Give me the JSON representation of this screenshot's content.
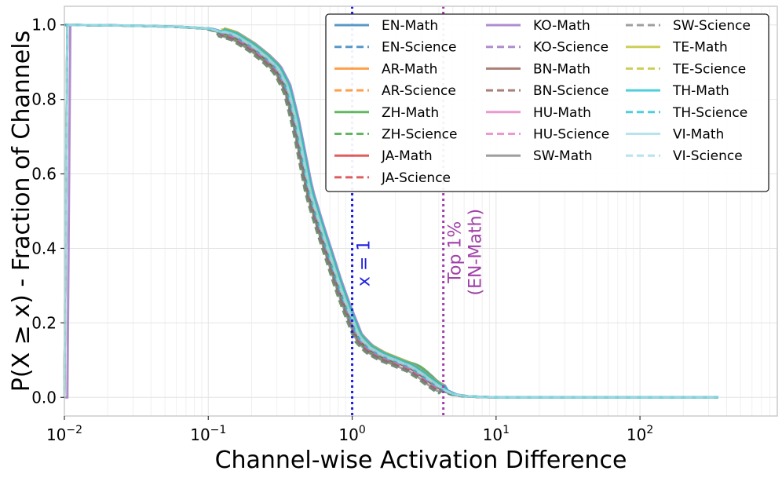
{
  "chart_data": {
    "type": "line",
    "xscale": "log",
    "xlim": [
      0.01,
      900
    ],
    "ylim": [
      -0.05,
      1.05
    ],
    "xlabel": "Channel-wise Activation Difference",
    "ylabel": "P(X ≥ x) - Fraction of Channels",
    "grid": true,
    "legend_position": "top-right",
    "x_ticks": [
      {
        "value": 0.01,
        "base": "10",
        "exp": "−2"
      },
      {
        "value": 0.1,
        "base": "10",
        "exp": "−1"
      },
      {
        "value": 1,
        "base": "10",
        "exp": "0"
      },
      {
        "value": 10,
        "base": "10",
        "exp": "1"
      },
      {
        "value": 100,
        "base": "10",
        "exp": "2"
      }
    ],
    "y_ticks": [
      {
        "value": 0.0,
        "label": "0.0"
      },
      {
        "value": 0.2,
        "label": "0.2"
      },
      {
        "value": 0.4,
        "label": "0.4"
      },
      {
        "value": 0.6,
        "label": "0.6"
      },
      {
        "value": 0.8,
        "label": "0.8"
      },
      {
        "value": 1.0,
        "label": "1.0"
      }
    ],
    "vlines": [
      {
        "x": 1.0,
        "label": "x = 1",
        "color": "#1f1fe0",
        "label_y": 0.36
      },
      {
        "x": 4.3,
        "label_lines": [
          "Top 1%",
          "(EN-Math)"
        ],
        "color": "#a040a8",
        "label_y": 0.39
      }
    ],
    "base_curve": {
      "x": [
        0.01,
        0.03,
        0.06,
        0.1,
        0.15,
        0.2,
        0.25,
        0.3,
        0.35,
        0.4,
        0.45,
        0.5,
        0.6,
        0.7,
        0.8,
        0.9,
        1.0,
        1.1,
        1.3,
        1.6,
        2.0,
        2.5,
        3.0,
        3.5,
        4.0,
        5.0,
        6.0,
        8.0,
        10,
        30,
        100,
        350
      ],
      "y": [
        1.0,
        0.998,
        0.995,
        0.99,
        0.97,
        0.94,
        0.91,
        0.88,
        0.83,
        0.74,
        0.64,
        0.55,
        0.45,
        0.37,
        0.3,
        0.245,
        0.2,
        0.16,
        0.13,
        0.11,
        0.095,
        0.08,
        0.06,
        0.04,
        0.025,
        0.008,
        0.003,
        0.001,
        0.0,
        0.0,
        0.0,
        0.0
      ]
    },
    "series": [
      {
        "name": "EN-Math",
        "color": "#1f77b4",
        "dash": false,
        "dx": 0.0,
        "dy": 0.0
      },
      {
        "name": "EN-Science",
        "color": "#1f77b4",
        "dash": true,
        "dx": -0.01,
        "dy": -0.005
      },
      {
        "name": "AR-Math",
        "color": "#ff7f0e",
        "dash": false,
        "dx": 0.01,
        "dy": 0.005
      },
      {
        "name": "AR-Science",
        "color": "#ff7f0e",
        "dash": true,
        "dx": 0.0,
        "dy": 0.004
      },
      {
        "name": "ZH-Math",
        "color": "#2ca02c",
        "dash": false,
        "dx": -0.005,
        "dy": -0.006,
        "bump": true
      },
      {
        "name": "ZH-Science",
        "color": "#2ca02c",
        "dash": true,
        "dx": -0.02,
        "dy": -0.01
      },
      {
        "name": "JA-Math",
        "color": "#d62728",
        "dash": false,
        "dx": 0.005,
        "dy": 0.002
      },
      {
        "name": "JA-Science",
        "color": "#d62728",
        "dash": true,
        "dx": -0.008,
        "dy": -0.004
      },
      {
        "name": "KO-Math",
        "color": "#9467bd",
        "dash": false,
        "dx": 0.025,
        "dy": 0.01
      },
      {
        "name": "KO-Science",
        "color": "#9467bd",
        "dash": true,
        "dx": 0.015,
        "dy": 0.006
      },
      {
        "name": "BN-Math",
        "color": "#8c564b",
        "dash": false,
        "dx": -0.005,
        "dy": 0.0
      },
      {
        "name": "BN-Science",
        "color": "#8c564b",
        "dash": true,
        "dx": -0.012,
        "dy": -0.006
      },
      {
        "name": "HU-Math",
        "color": "#e377c2",
        "dash": false,
        "dx": 0.008,
        "dy": 0.004
      },
      {
        "name": "HU-Science",
        "color": "#e377c2",
        "dash": true,
        "dx": 0.0,
        "dy": -0.002
      },
      {
        "name": "SW-Math",
        "color": "#7f7f7f",
        "dash": false,
        "dx": -0.01,
        "dy": -0.008
      },
      {
        "name": "SW-Science",
        "color": "#7f7f7f",
        "dash": true,
        "dx": -0.018,
        "dy": -0.01
      },
      {
        "name": "TE-Math",
        "color": "#bcbd22",
        "dash": false,
        "dx": 0.012,
        "dy": 0.012
      },
      {
        "name": "TE-Science",
        "color": "#bcbd22",
        "dash": true,
        "dx": 0.005,
        "dy": 0.008
      },
      {
        "name": "TH-Math",
        "color": "#17becf",
        "dash": false,
        "dx": 0.02,
        "dy": 0.008
      },
      {
        "name": "TH-Science",
        "color": "#17becf",
        "dash": true,
        "dx": 0.0,
        "dy": 0.002
      },
      {
        "name": "VI-Math",
        "color": "#9edae5",
        "dash": false,
        "dx": 0.01,
        "dy": 0.004
      },
      {
        "name": "VI-Science",
        "color": "#9edae5",
        "dash": true,
        "dx": 0.005,
        "dy": 0.002
      }
    ]
  }
}
